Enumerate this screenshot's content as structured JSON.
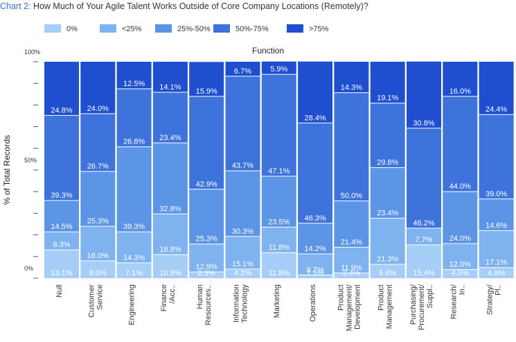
{
  "header": {
    "chart_number": "Chart 2:",
    "title": "How Much of Your Agile Talent Works Outside of Core Company Locations (Remotely)?"
  },
  "colors": {
    "c0": "#a6cef7",
    "c1": "#7fb3f0",
    "c2": "#5c95e6",
    "c3": "#3f73dc",
    "c4": "#1f4fcf"
  },
  "chart_data": {
    "type": "bar",
    "stacked": true,
    "title": "How Much of Your Agile Talent Works Outside of Core Company Locations (Remotely)?",
    "column_header": "Function",
    "ylabel": "% of Total Records",
    "ylim": [
      0,
      100
    ],
    "y_tick_labels": [
      "0%",
      "50%",
      "100%"
    ],
    "legend_position": "top",
    "categories": [
      [
        "Null"
      ],
      [
        "Customer",
        "Service"
      ],
      [
        "Engineering"
      ],
      [
        "Finance",
        "/Acc.."
      ],
      [
        "Human",
        "Resources.."
      ],
      [
        "Information",
        "Technology"
      ],
      [
        "Marketing"
      ],
      [
        "Operations"
      ],
      [
        "Product",
        "Management/",
        "Development"
      ],
      [
        "Product",
        "Management"
      ],
      [
        "Purchasing/",
        "Procurement/",
        "Suppl.."
      ],
      [
        "Research/",
        "In.."
      ],
      [
        "Strategy/",
        "Pl.."
      ]
    ],
    "series": [
      {
        "name": "0%",
        "color_key": "c0",
        "values": [
          13.1,
          8.0,
          7.1,
          10.9,
          2.9,
          4.2,
          11.8,
          1.5,
          2.4,
          6.4,
          15.4,
          4.0,
          4.9
        ],
        "labels": [
          "13.1%",
          "8.0%",
          "7.1%",
          "10.9%",
          "2.9%",
          "4.2%",
          "11.8%",
          "1.5%",
          "2.4%",
          "6.4%",
          "15.4%",
          "4.0%",
          "4.9%"
        ]
      },
      {
        "name": "<25%",
        "color_key": "c1",
        "values": [
          8.3,
          16.0,
          14.3,
          18.8,
          12.9,
          15.1,
          11.8,
          9.7,
          11.9,
          21.3,
          7.7,
          12.0,
          17.1
        ],
        "labels": [
          "8.3%",
          "16.0%",
          "14.3%",
          "18.8%",
          "12.9%",
          "15.1%",
          "11.8%",
          "9.7%",
          "11.9%",
          "21.3%",
          "7.7%",
          "12.0%",
          "17.1%"
        ]
      },
      {
        "name": "25%-50%",
        "color_key": "c2",
        "values": [
          14.5,
          25.3,
          39.3,
          32.8,
          25.3,
          30.3,
          23.5,
          14.2,
          21.4,
          23.4,
          0,
          24.0,
          14.6
        ],
        "labels": [
          "14.5%",
          "25.3%",
          "39.3%",
          "32.8%",
          "25.3%",
          "30.3%",
          "23.5%",
          "14.2%",
          "21.4%",
          "23.4%",
          "",
          "24.0%",
          "14.6%"
        ]
      },
      {
        "name": "50%-75%",
        "color_key": "c3",
        "values": [
          39.3,
          26.7,
          26.8,
          23.4,
          42.9,
          43.7,
          47.1,
          46.3,
          50.0,
          29.8,
          46.2,
          44.0,
          39.0
        ],
        "labels": [
          "39.3%",
          "26.7%",
          "26.8%",
          "23.4%",
          "42.9%",
          "43.7%",
          "47.1%",
          "46.3%",
          "50.0%",
          "29.8%",
          "46.2%",
          "44.0%",
          "39.0%"
        ]
      },
      {
        "name": ">75%",
        "color_key": "c4",
        "values": [
          24.8,
          24.0,
          12.5,
          14.1,
          15.9,
          6.7,
          5.9,
          28.4,
          14.3,
          19.1,
          30.8,
          16.0,
          24.4
        ],
        "labels": [
          "24.8%",
          "24.0%",
          "12.5%",
          "14.1%",
          "15.9%",
          "6.7%",
          "5.9%",
          "28.4%",
          "14.3%",
          "19.1%",
          "30.8%",
          "16.0%",
          "24.4%"
        ]
      }
    ]
  }
}
